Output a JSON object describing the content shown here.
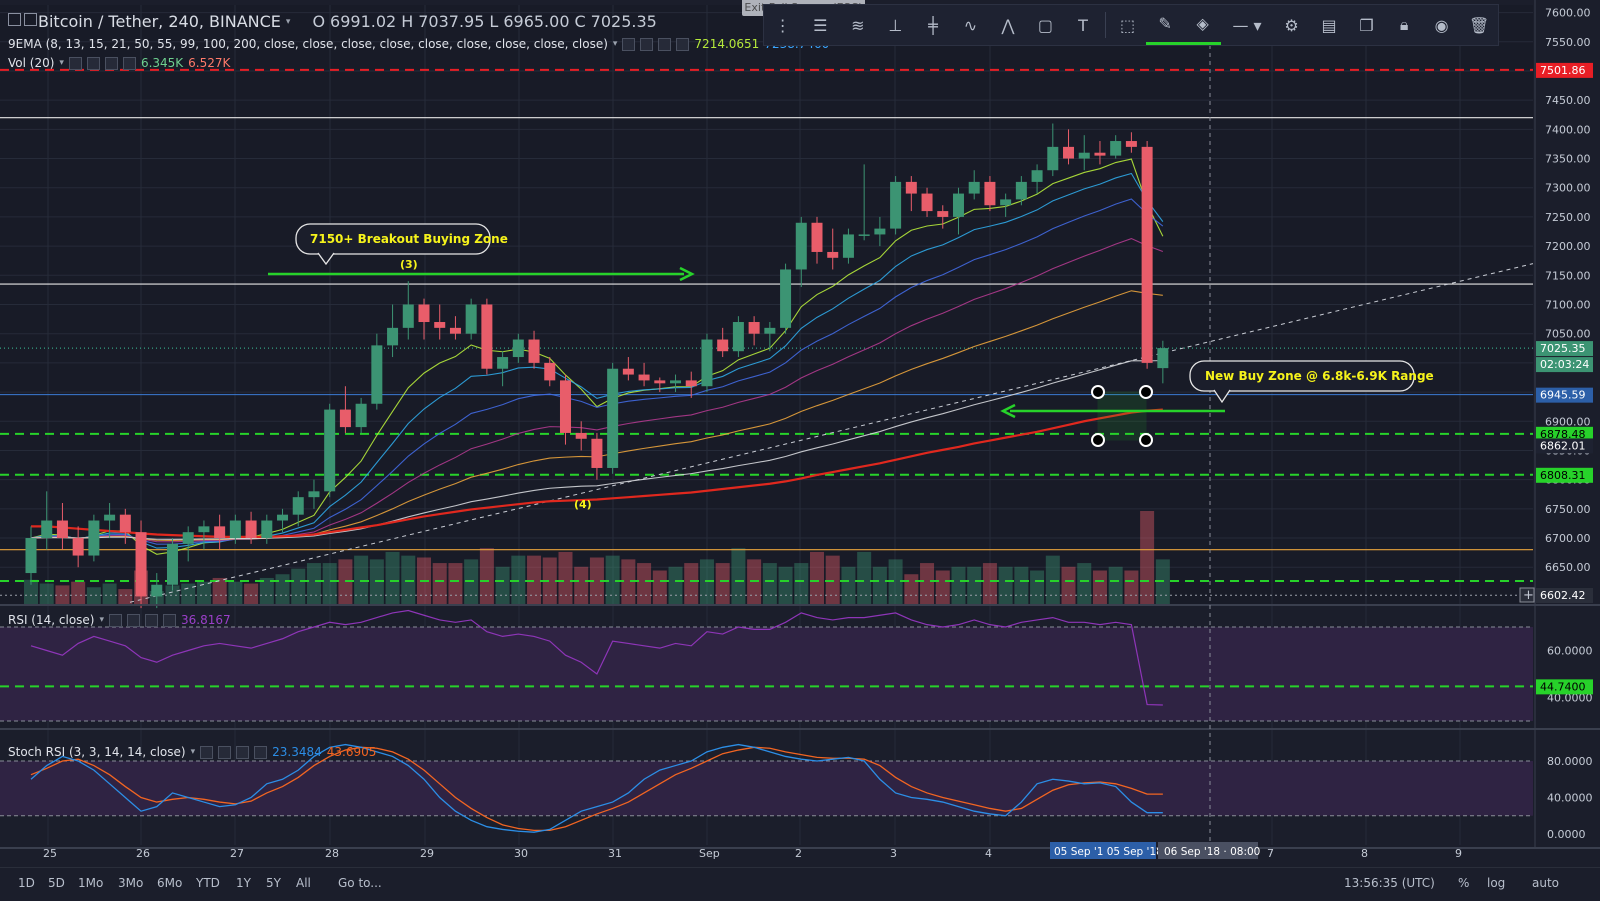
{
  "header": {
    "symbol": "Bitcoin / Tether, 240, BINANCE",
    "o_label": "O",
    "o": "6991.02",
    "h_label": "H",
    "h": "7037.95",
    "l_label": "L",
    "l": "6965.00",
    "c_label": "C",
    "c": "7025.35",
    "ema_label": "9EMA (8, 13, 15, 21, 50, 55, 99, 100, 200, close, close, close, close, close, close, close, close, close)",
    "ema_v1": "7214.0651",
    "ema_v2": "7238.7460",
    "vol_label": "Vol (20)",
    "vol_v1": "6.345K",
    "vol_v2": "6.527K"
  },
  "toolbar": {
    "exit_fullscreen": "Exit Full Screen (ESC)",
    "tools": [
      "menu-icon",
      "horizontal-lines-icon",
      "channel-icon",
      "vertical-lines-icon",
      "cross-lines-icon",
      "wave-icon",
      "abc-pattern-icon",
      "rectangle-icon",
      "text-icon",
      "select-icon",
      "pencil-icon",
      "fill-icon",
      "line-style-icon",
      "gear-icon",
      "layers-icon",
      "clone-icon",
      "lock-icon",
      "eye-icon",
      "trash-icon"
    ]
  },
  "rsi_panel": {
    "label": "RSI (14, close)",
    "value": "36.8167"
  },
  "stoch_panel": {
    "label": "Stoch RSI (3, 3, 14, 14, close)",
    "k_value": "23.3484",
    "d_value": "43.6905"
  },
  "annotations": {
    "breakout_callout": "7150+ Breakout Buying Zone",
    "marker_3": "(3)",
    "marker_4": "(4)",
    "buy_zone_callout": "New Buy Zone @ 6.8k-6.9K Range"
  },
  "price_tags": {
    "red_level": "7501.86",
    "last_price": "7025.35",
    "countdown": "02:03:24",
    "blue_level": "6945.59",
    "green_1": "6878.48",
    "gray_level": "6862.01",
    "green_2": "6808.31",
    "vol_low": "6602.42"
  },
  "rsi_tag": "44.7400",
  "x_axis": {
    "labels": [
      "25",
      "26",
      "27",
      "28",
      "29",
      "30",
      "31",
      "Sep",
      "2",
      "3",
      "4",
      "7",
      "8",
      "9"
    ],
    "cursor_label": "06 Sep '18 · 08:00",
    "highlight_label": "05 Sep '1 05 Sep '18"
  },
  "footer": {
    "timeframes": [
      "1D",
      "5D",
      "1Mo",
      "3Mo",
      "6Mo",
      "YTD",
      "1Y",
      "5Y",
      "All"
    ],
    "goto": "Go to...",
    "clock": "13:56:35 (UTC)",
    "percent": "%",
    "log": "log",
    "auto": "auto"
  },
  "colors": {
    "up": "#3c9473",
    "down": "#e85d6a",
    "ema200": "#e0281e",
    "green_line": "#27d22a",
    "red_line": "#e81e25",
    "rsi_band": "#2f2343",
    "rsi_line": "#8e35b8",
    "stoch_k": "#2c8ee6",
    "stoch_d": "#f26522",
    "callout_text": "#f6f31b"
  },
  "chart_data": {
    "type": "candlestick",
    "symbol": "Bitcoin / Tether",
    "interval": "240",
    "ylim": [
      6600,
      7600
    ],
    "y_ticks": [
      7600,
      7550,
      7500,
      7450,
      7400,
      7350,
      7300,
      7250,
      7200,
      7150,
      7100,
      7050,
      7000,
      6950,
      6900,
      6850,
      6800,
      6750,
      6700,
      6650
    ],
    "candles": [
      [
        6640,
        6720,
        6620,
        6700
      ],
      [
        6700,
        6780,
        6680,
        6730
      ],
      [
        6730,
        6760,
        6680,
        6700
      ],
      [
        6700,
        6720,
        6650,
        6670
      ],
      [
        6670,
        6740,
        6660,
        6730
      ],
      [
        6730,
        6760,
        6700,
        6740
      ],
      [
        6740,
        6750,
        6690,
        6710
      ],
      [
        6710,
        6730,
        6580,
        6600
      ],
      [
        6600,
        6640,
        6580,
        6620
      ],
      [
        6620,
        6700,
        6610,
        6690
      ],
      [
        6690,
        6720,
        6660,
        6710
      ],
      [
        6710,
        6730,
        6680,
        6720
      ],
      [
        6720,
        6740,
        6680,
        6700
      ],
      [
        6700,
        6740,
        6690,
        6730
      ],
      [
        6730,
        6745,
        6690,
        6700
      ],
      [
        6700,
        6740,
        6690,
        6730
      ],
      [
        6730,
        6750,
        6710,
        6740
      ],
      [
        6740,
        6780,
        6720,
        6770
      ],
      [
        6770,
        6800,
        6750,
        6780
      ],
      [
        6780,
        6930,
        6770,
        6920
      ],
      [
        6920,
        6960,
        6880,
        6890
      ],
      [
        6890,
        6940,
        6880,
        6930
      ],
      [
        6930,
        7050,
        6920,
        7030
      ],
      [
        7030,
        7100,
        7010,
        7060
      ],
      [
        7060,
        7140,
        7040,
        7100
      ],
      [
        7100,
        7110,
        7040,
        7070
      ],
      [
        7070,
        7100,
        7040,
        7060
      ],
      [
        7060,
        7080,
        7040,
        7050
      ],
      [
        7050,
        7110,
        7040,
        7100
      ],
      [
        7100,
        7110,
        6980,
        6990
      ],
      [
        6990,
        7020,
        6960,
        7010
      ],
      [
        7010,
        7050,
        7000,
        7040
      ],
      [
        7040,
        7055,
        6990,
        7000
      ],
      [
        7000,
        7010,
        6960,
        6970
      ],
      [
        6970,
        6980,
        6860,
        6880
      ],
      [
        6880,
        6900,
        6850,
        6870
      ],
      [
        6870,
        6880,
        6800,
        6820
      ],
      [
        6820,
        7000,
        6810,
        6990
      ],
      [
        6990,
        7010,
        6970,
        6980
      ],
      [
        6980,
        7000,
        6960,
        6970
      ],
      [
        6970,
        6975,
        6950,
        6965
      ],
      [
        6965,
        6980,
        6950,
        6970
      ],
      [
        6970,
        6985,
        6940,
        6960
      ],
      [
        6960,
        7050,
        6950,
        7040
      ],
      [
        7040,
        7060,
        7010,
        7020
      ],
      [
        7020,
        7080,
        7010,
        7070
      ],
      [
        7070,
        7080,
        7030,
        7050
      ],
      [
        7050,
        7070,
        7020,
        7060
      ],
      [
        7060,
        7170,
        7050,
        7160
      ],
      [
        7160,
        7250,
        7130,
        7240
      ],
      [
        7240,
        7250,
        7170,
        7190
      ],
      [
        7190,
        7230,
        7160,
        7180
      ],
      [
        7180,
        7230,
        7170,
        7220
      ],
      [
        7220,
        7340,
        7210,
        7220
      ],
      [
        7220,
        7250,
        7200,
        7230
      ],
      [
        7230,
        7320,
        7220,
        7310
      ],
      [
        7310,
        7320,
        7260,
        7290
      ],
      [
        7290,
        7300,
        7250,
        7260
      ],
      [
        7260,
        7270,
        7230,
        7250
      ],
      [
        7250,
        7300,
        7220,
        7290
      ],
      [
        7290,
        7330,
        7280,
        7310
      ],
      [
        7310,
        7320,
        7260,
        7270
      ],
      [
        7270,
        7290,
        7250,
        7280
      ],
      [
        7280,
        7320,
        7270,
        7310
      ],
      [
        7310,
        7340,
        7290,
        7330
      ],
      [
        7330,
        7410,
        7320,
        7370
      ],
      [
        7370,
        7400,
        7340,
        7350
      ],
      [
        7350,
        7390,
        7330,
        7360
      ],
      [
        7360,
        7380,
        7340,
        7355
      ],
      [
        7355,
        7390,
        7350,
        7380
      ],
      [
        7380,
        7395,
        7360,
        7370
      ],
      [
        7370,
        7380,
        6990,
        7000
      ],
      [
        6991.02,
        7037.95,
        6965.0,
        7025.35
      ]
    ],
    "volume": [
      13,
      11,
      10,
      12,
      9,
      11,
      8,
      18,
      7,
      10,
      11,
      12,
      14,
      12,
      11,
      14,
      16,
      19,
      22,
      22,
      24,
      26,
      24,
      28,
      26,
      25,
      22,
      22,
      24,
      30,
      20,
      26,
      26,
      25,
      28,
      20,
      25,
      26,
      24,
      22,
      18,
      20,
      22,
      24,
      22,
      30,
      24,
      22,
      20,
      22,
      28,
      26,
      20,
      28,
      20,
      24,
      16,
      22,
      18,
      20,
      20,
      22,
      20,
      20,
      18,
      26,
      20,
      22,
      18,
      20,
      18,
      50,
      24
    ],
    "rsi": [
      62,
      60,
      58,
      63,
      66,
      64,
      62,
      57,
      55,
      58,
      60,
      62,
      63,
      62,
      61,
      63,
      65,
      68,
      70,
      72,
      71,
      72,
      74,
      76,
      77,
      75,
      73,
      72,
      73,
      68,
      66,
      67,
      66,
      64,
      58,
      55,
      50,
      64,
      63,
      62,
      61,
      63,
      62,
      68,
      67,
      70,
      69,
      69,
      72,
      76,
      74,
      73,
      74,
      74,
      75,
      76,
      73,
      71,
      70,
      71,
      73,
      71,
      70,
      72,
      73,
      74,
      72,
      72,
      71,
      72,
      71,
      37,
      36.8167
    ],
    "stoch_k": [
      60,
      75,
      85,
      80,
      70,
      55,
      40,
      25,
      30,
      45,
      40,
      35,
      30,
      32,
      40,
      55,
      60,
      70,
      85,
      95,
      98,
      95,
      90,
      85,
      75,
      60,
      40,
      25,
      15,
      8,
      5,
      3,
      2,
      5,
      15,
      25,
      30,
      35,
      45,
      60,
      70,
      75,
      80,
      90,
      95,
      98,
      95,
      90,
      85,
      82,
      80,
      82,
      84,
      80,
      60,
      45,
      40,
      38,
      35,
      30,
      25,
      22,
      20,
      35,
      55,
      60,
      58,
      55,
      56,
      52,
      35,
      23.3484,
      23.3484
    ],
    "stoch_d": [
      65,
      72,
      80,
      82,
      75,
      65,
      52,
      40,
      35,
      38,
      40,
      38,
      35,
      33,
      36,
      45,
      52,
      62,
      75,
      85,
      92,
      95,
      94,
      90,
      82,
      70,
      55,
      40,
      28,
      18,
      10,
      6,
      4,
      4,
      8,
      15,
      22,
      28,
      35,
      45,
      55,
      65,
      72,
      80,
      88,
      92,
      95,
      94,
      90,
      87,
      84,
      83,
      83,
      82,
      75,
      62,
      52,
      45,
      40,
      36,
      32,
      28,
      25,
      28,
      38,
      48,
      54,
      56,
      57,
      55,
      50,
      43.6905,
      43.6905
    ],
    "ema200": [
      6720,
      6720,
      6718,
      6716,
      6714,
      6712,
      6710,
      6708,
      6706,
      6705,
      6704,
      6703,
      6702,
      6702,
      6702,
      6702,
      6703,
      6704,
      6706,
      6710,
      6714,
      6718,
      6722,
      6727,
      6732,
      6737,
      6741,
      6745,
      6749,
      6752,
      6755,
      6758,
      6761,
      6763,
      6764,
      6765,
      6766,
      6768,
      6770,
      6772,
      6774,
      6776,
      6778,
      6781,
      6784,
      6787,
      6790,
      6793,
      6797,
      6802,
      6808,
      6813,
      6818,
      6823,
      6828,
      6834,
      6840,
      6846,
      6851,
      6856,
      6862,
      6867,
      6872,
      6877,
      6882,
      6888,
      6894,
      6900,
      6905,
      6910,
      6915,
      6918,
      6920
    ],
    "levels": {
      "red_dashed": 7501.86,
      "white_upper": 7420,
      "white_lower": 7135,
      "blue": 6945.59,
      "green_1": 6878.48,
      "green_2": 6808.31,
      "orange": 6680
    },
    "rsi_ylim": [
      0,
      100
    ],
    "rsi_ticks": [
      60,
      40
    ],
    "rsi_green_level": 44.74,
    "stoch_ylim": [
      0,
      100
    ],
    "stoch_ticks": [
      80,
      40,
      0
    ]
  }
}
